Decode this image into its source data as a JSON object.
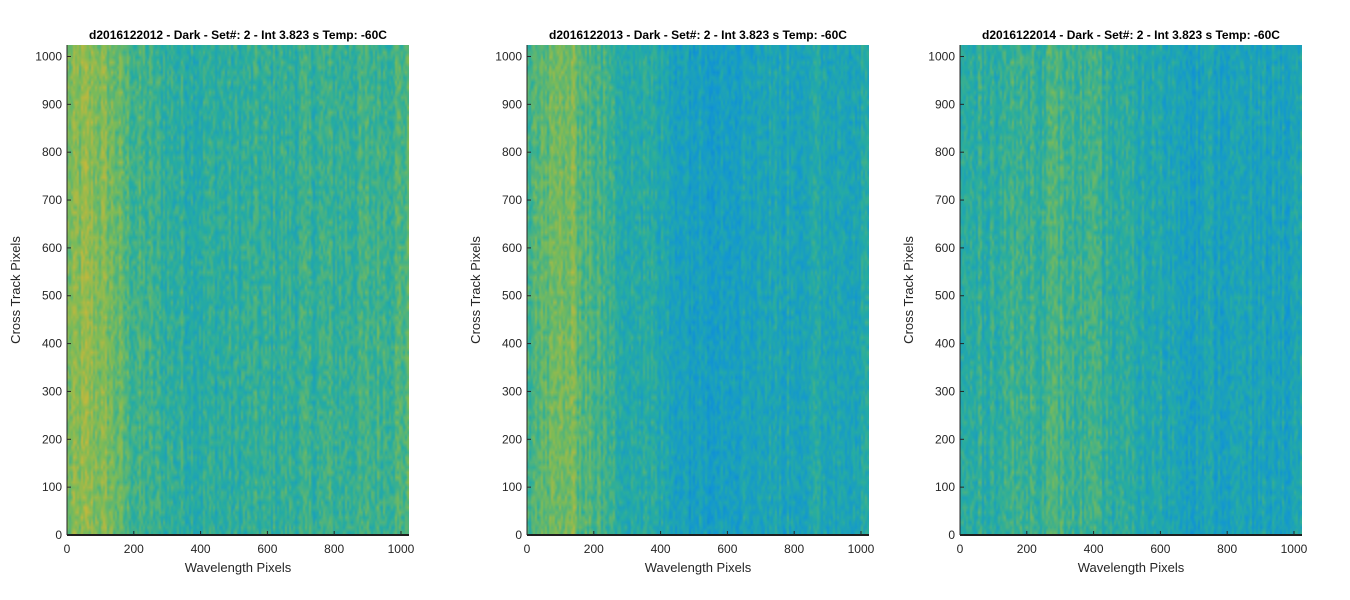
{
  "chart_data": [
    {
      "type": "heatmap",
      "title": "d2016122012 - Dark - Set#: 2 - Int 3.823 s Temp: -60C",
      "xlabel": "Wavelength Pixels",
      "ylabel": "Cross Track Pixels",
      "xlim": [
        0,
        1024
      ],
      "ylim": [
        0,
        1024
      ],
      "xticks": [
        0,
        200,
        400,
        600,
        800,
        1000
      ],
      "yticks": [
        0,
        100,
        200,
        300,
        400,
        500,
        600,
        700,
        800,
        900,
        1000
      ],
      "colormap": "parula",
      "column_profile": {
        "x": [
          0,
          60,
          120,
          200,
          300,
          400,
          500,
          600,
          700,
          800,
          900,
          1024
        ],
        "level": [
          0.72,
          0.8,
          0.74,
          0.58,
          0.52,
          0.5,
          0.5,
          0.52,
          0.53,
          0.54,
          0.56,
          0.62
        ]
      }
    },
    {
      "type": "heatmap",
      "title": "d2016122013 - Dark - Set#: 2 - Int 3.823 s Temp: -60C",
      "xlabel": "Wavelength Pixels",
      "ylabel": "Cross Track Pixels",
      "xlim": [
        0,
        1024
      ],
      "ylim": [
        0,
        1024
      ],
      "xticks": [
        0,
        200,
        400,
        600,
        800,
        1000
      ],
      "yticks": [
        0,
        100,
        200,
        300,
        400,
        500,
        600,
        700,
        800,
        900,
        1000
      ],
      "colormap": "parula",
      "column_profile": {
        "x": [
          0,
          60,
          120,
          180,
          260,
          360,
          440,
          500,
          600,
          700,
          800,
          900,
          1024
        ],
        "level": [
          0.6,
          0.66,
          0.74,
          0.64,
          0.52,
          0.46,
          0.4,
          0.36,
          0.38,
          0.4,
          0.41,
          0.42,
          0.44
        ]
      }
    },
    {
      "type": "heatmap",
      "title": "d2016122014 - Dark - Set#: 2 - Int 3.823 s Temp: -60C",
      "xlabel": "Wavelength Pixels",
      "ylabel": "Cross Track Pixels",
      "xlim": [
        0,
        1024
      ],
      "ylim": [
        0,
        1024
      ],
      "xticks": [
        0,
        200,
        400,
        600,
        800,
        1000
      ],
      "yticks": [
        0,
        100,
        200,
        300,
        400,
        500,
        600,
        700,
        800,
        900,
        1000
      ],
      "colormap": "parula",
      "column_profile": {
        "x": [
          0,
          100,
          200,
          300,
          400,
          500,
          600,
          700,
          800,
          900,
          1024
        ],
        "level": [
          0.46,
          0.52,
          0.56,
          0.58,
          0.53,
          0.47,
          0.43,
          0.39,
          0.38,
          0.38,
          0.39
        ]
      }
    }
  ],
  "colors": {
    "colormap_stops": [
      "#0a72d8",
      "#1296d3",
      "#27ada0",
      "#7dbb57",
      "#d6b735"
    ],
    "axis": "#262626",
    "baseline": "#1f1f1f"
  }
}
